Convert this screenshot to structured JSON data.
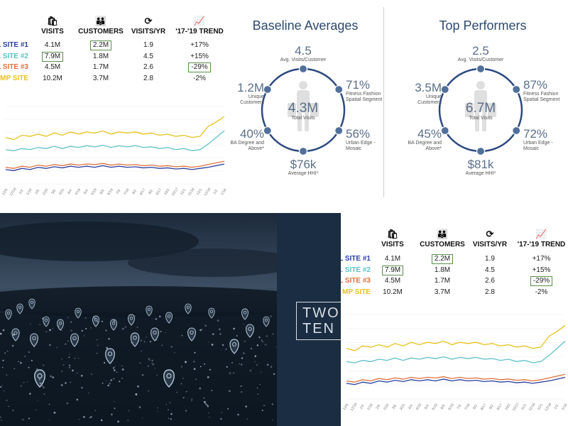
{
  "table_headers": {
    "visits": "VISITS",
    "customers": "CUSTOMERS",
    "visits_per_yr": "VISITS/YR",
    "trend": "'17-'19 TREND"
  },
  "icons": {
    "visits": "shopping-bag-icon",
    "customers": "people-icon",
    "visits_per_yr": "repeat-icon",
    "trend": "trend-chart-icon",
    "pin": "map-pin-icon",
    "silhouette": "shopper-silhouette-icon"
  },
  "table_rows": [
    {
      "site": "L SITE #1",
      "visits": "4.1M",
      "customers": "2.2M",
      "visits_per_yr": "1.9",
      "trend": "+17%",
      "color": "#2b3fa0"
    },
    {
      "site": "L SITE #2",
      "visits": "7.9M",
      "customers": "1.8M",
      "visits_per_yr": "4.5",
      "trend": "+15%",
      "color": "#5fc1c9"
    },
    {
      "site": "L SITE #3",
      "visits": "4.5M",
      "customers": "1.7M",
      "visits_per_yr": "2.6",
      "trend": "-29%",
      "color": "#e0703a"
    },
    {
      "site": "MP SITE",
      "visits": "10.2M",
      "customers": "3.7M",
      "visits_per_yr": "2.8",
      "trend": "-2%",
      "color": "#e8c21e"
    }
  ],
  "chart_data": {
    "type": "line",
    "x": [
      "12/5",
      "12/18",
      "1/2",
      "1/18",
      "2/5",
      "2/20",
      "3/6",
      "3/21",
      "4/4",
      "4/19",
      "5/4",
      "5/19",
      "6/5",
      "6/19",
      "7/3",
      "7/18",
      "8/2",
      "8/17",
      "9/2",
      "9/17",
      "10/2",
      "10/17",
      "11/1",
      "11/16",
      "12/1",
      "12/16",
      "1/2",
      "1/16"
    ],
    "yticks": [
      "",
      "",
      "",
      "",
      "",
      "",
      ""
    ],
    "ylim": [
      0,
      700
    ],
    "series": [
      {
        "name": "MP SITE",
        "color": "#e8c21e",
        "values": [
          420,
          400,
          440,
          430,
          450,
          430,
          460,
          440,
          470,
          450,
          470,
          460,
          480,
          450,
          470,
          460,
          470,
          450,
          460,
          440,
          450,
          430,
          440,
          420,
          430,
          520,
          560,
          610
        ]
      },
      {
        "name": "L SITE #2",
        "color": "#5fc1c9",
        "values": [
          310,
          300,
          320,
          310,
          330,
          320,
          340,
          320,
          340,
          330,
          345,
          335,
          350,
          330,
          345,
          335,
          345,
          330,
          335,
          320,
          330,
          310,
          320,
          300,
          310,
          360,
          420,
          480
        ]
      },
      {
        "name": "L SITE #3",
        "color": "#e0703a",
        "values": [
          150,
          140,
          160,
          150,
          170,
          160,
          175,
          165,
          180,
          170,
          180,
          175,
          185,
          170,
          180,
          170,
          175,
          165,
          170,
          160,
          165,
          155,
          160,
          150,
          160,
          175,
          190,
          205
        ]
      },
      {
        "name": "L SITE #1",
        "color": "#2b3fa0",
        "values": [
          130,
          120,
          140,
          130,
          150,
          140,
          155,
          145,
          160,
          150,
          160,
          150,
          165,
          150,
          160,
          150,
          155,
          145,
          150,
          140,
          145,
          135,
          140,
          130,
          140,
          150,
          165,
          180
        ]
      }
    ]
  },
  "baseline": {
    "title": "Baseline Averages",
    "top_val": "4.5",
    "top_lbl": "Avg. Visits/Customer",
    "tr_val": "71%",
    "tr_lbl": "Fitness Fashion Spatial Segment",
    "l_val": "1.2M",
    "l_lbl": "Unique Customers",
    "center_val": "4.3M",
    "center_lbl": "Total Visits",
    "bl_val": "40%",
    "bl_lbl": "BA Degree and Above*",
    "br_val": "56%",
    "br_lbl": "Urban Edge - Mosaic",
    "bottom_val": "$76k",
    "bottom_lbl": "Average HHI*"
  },
  "top": {
    "title": "Top Performers",
    "top_val": "2.5",
    "top_lbl": "Avg. Visits/Customer",
    "tr_val": "87%",
    "tr_lbl": "Fitness Fashion Spatial Segment",
    "l_val": "3.5M",
    "l_lbl": "Unique Customers",
    "center_val": "6.7M",
    "center_lbl": "Total Visits",
    "bl_val": "45%",
    "bl_lbl": "BA Degree and Above*",
    "br_val": "72%",
    "br_lbl": "Urban Edge - Mosaic",
    "bottom_val": "$81k",
    "bottom_lbl": "Average HHI*"
  },
  "brand": {
    "line1": "TWO",
    "line2": "TEN"
  },
  "colors": {
    "navy": "#2d4a6e",
    "circle": "#2c4a80",
    "dot": "#50709a",
    "highlight_box": "#5a8f4a"
  }
}
